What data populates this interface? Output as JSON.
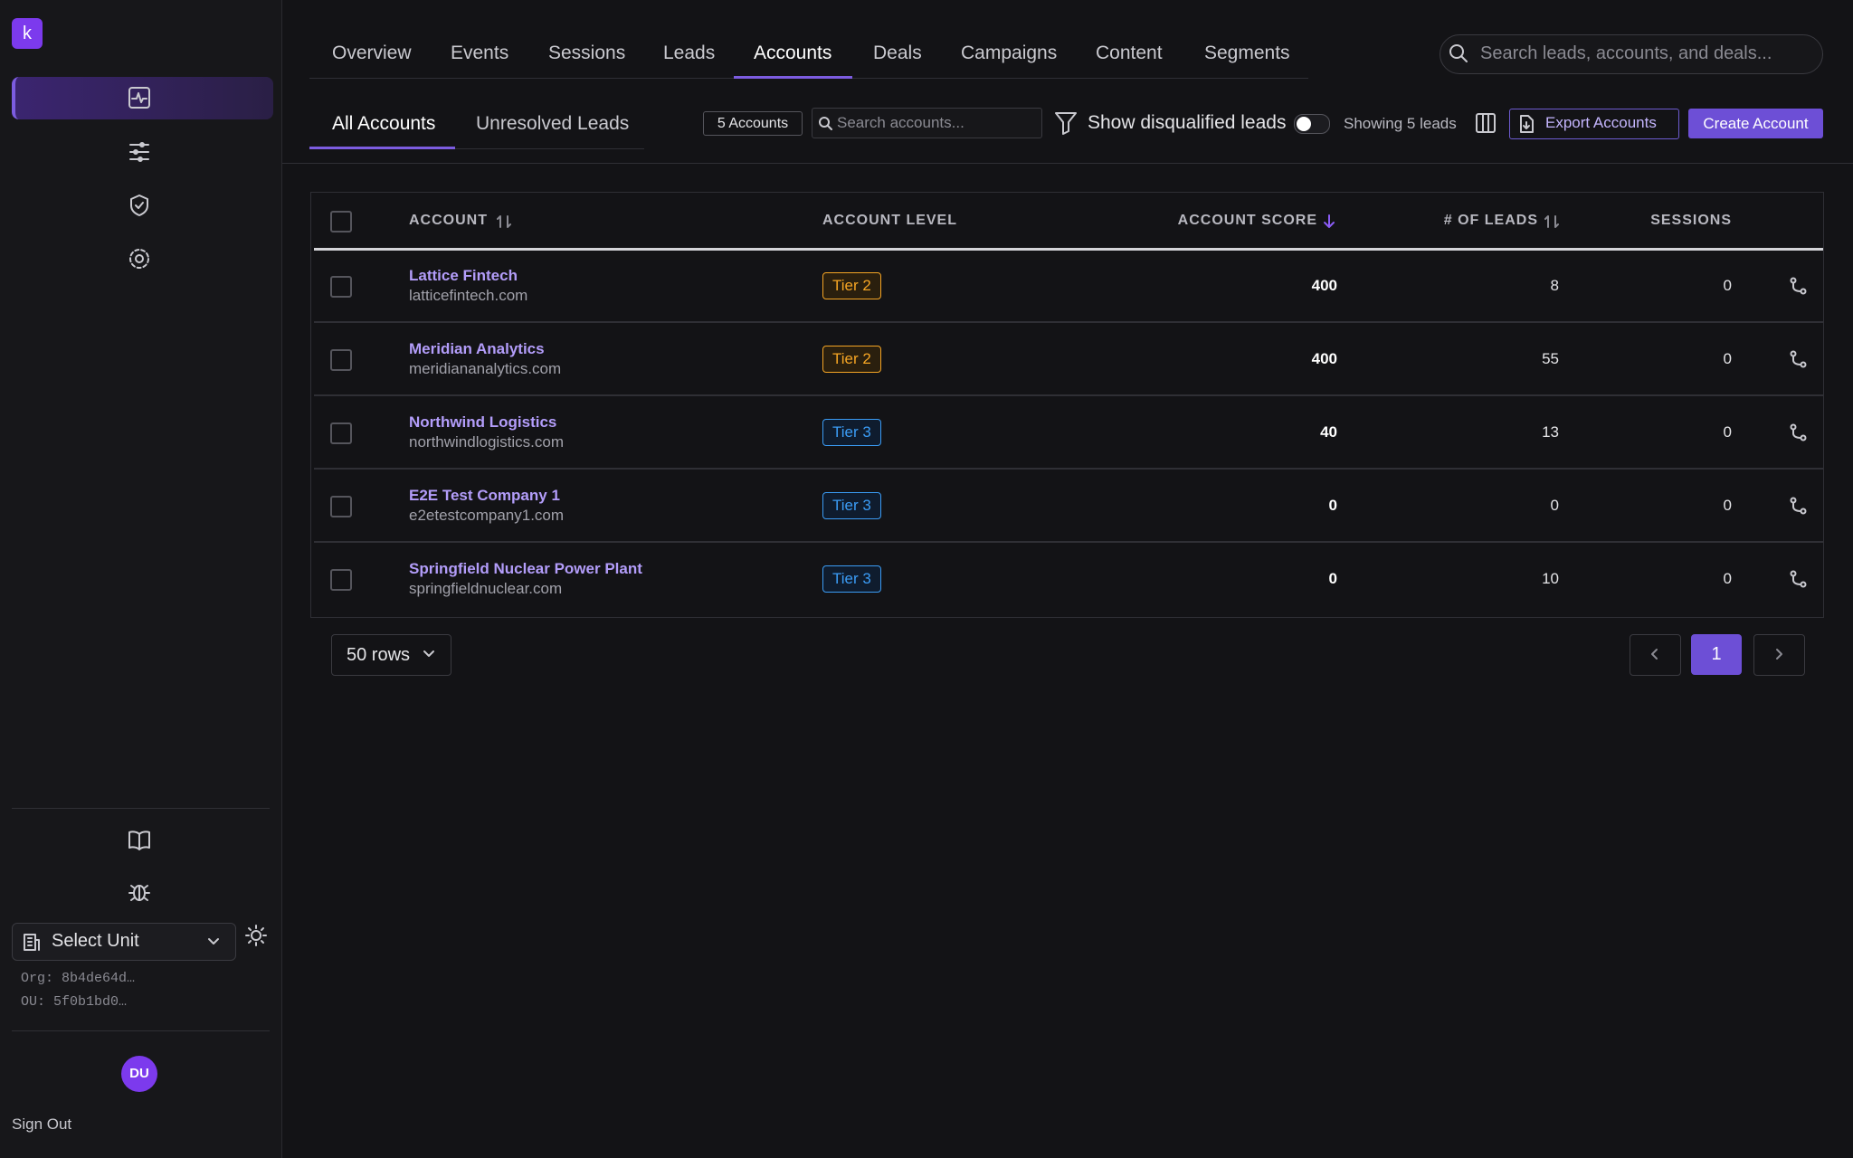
{
  "sidebar": {
    "logo": "k",
    "select_unit": "Select Unit",
    "org": "Org: 8b4de64d…",
    "ou": "OU: 5f0b1bd0…",
    "avatar": "DU",
    "sign_out": "Sign Out"
  },
  "nav": {
    "tabs": [
      "Overview",
      "Events",
      "Sessions",
      "Leads",
      "Accounts",
      "Deals",
      "Campaigns",
      "Content",
      "Segments"
    ],
    "active": 4,
    "search_placeholder": "Search leads, accounts, and deals..."
  },
  "toolbar": {
    "subtabs": [
      "All Accounts",
      "Unresolved Leads"
    ],
    "count": "5 Accounts",
    "search_placeholder": "Search accounts...",
    "toggle_label": "Show disqualified leads",
    "showing": "Showing 5 leads",
    "export": "Export Accounts",
    "create": "Create Account"
  },
  "table": {
    "headers": [
      "ACCOUNT",
      "ACCOUNT LEVEL",
      "ACCOUNT SCORE",
      "# OF LEADS",
      "SESSIONS"
    ],
    "rows": [
      [
        "Lattice Fintech",
        "latticefintech.com",
        "Tier 2",
        "400",
        "8",
        "0"
      ],
      [
        "Meridian Analytics",
        "meridiananalytics.com",
        "Tier 2",
        "400",
        "55",
        "0"
      ],
      [
        "Northwind Logistics",
        "northwindlogistics.com",
        "Tier 3",
        "40",
        "13",
        "0"
      ],
      [
        "E2E Test Company 1",
        "e2etestcompany1.com",
        "Tier 3",
        "0",
        "0",
        "0"
      ],
      [
        "Springfield Nuclear Power Plant",
        "springfieldnuclear.com",
        "Tier 3",
        "0",
        "10",
        "0"
      ]
    ]
  },
  "footer": {
    "rows_select": "50 rows",
    "page": "1"
  }
}
